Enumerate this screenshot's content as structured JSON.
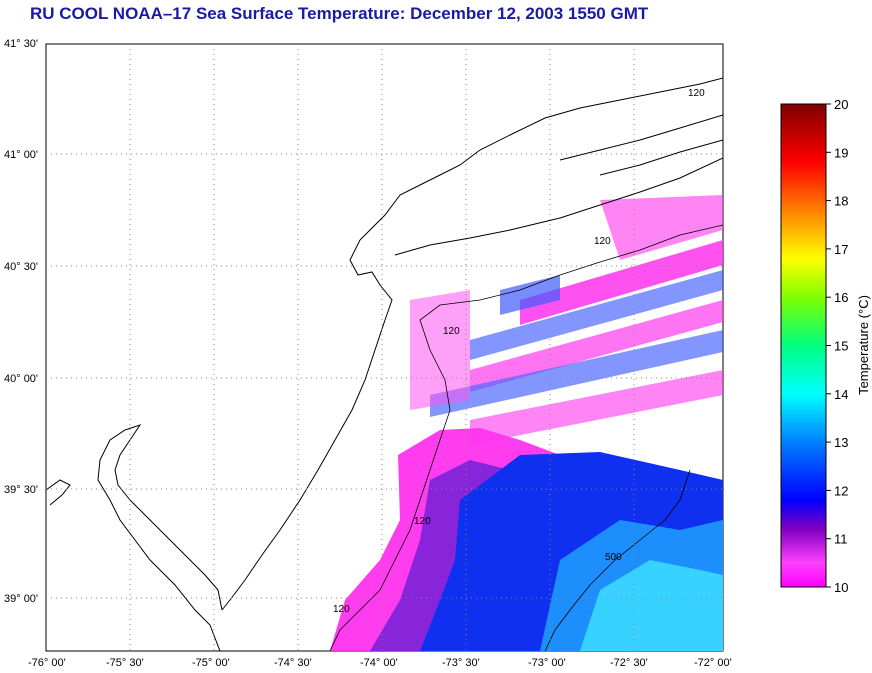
{
  "title": "RU COOL  NOAA–17  Sea Surface Temperature:  December 12, 2003 1550 GMT",
  "lat_ticks": [
    "41° 30'",
    "41° 00'",
    "40° 30'",
    "40° 00'",
    "39° 30'",
    "39° 00'"
  ],
  "lon_ticks": [
    "-76° 00'",
    "-75° 30'",
    "-75° 00'",
    "-74° 30'",
    "-74° 00'",
    "-73° 30'",
    "-73° 00'",
    "-72° 30'",
    "-72° 00'"
  ],
  "colorbar": {
    "label": "Temperature (°C)",
    "ticks": [
      "20",
      "19",
      "18",
      "17",
      "16",
      "15",
      "14",
      "13",
      "12",
      "11",
      "10"
    ],
    "range": [
      10,
      20
    ],
    "colors": [
      "#ff00ff",
      "#8000c0",
      "#0000ff",
      "#0080ff",
      "#00ffff",
      "#00ff80",
      "#80ff00",
      "#ffff00",
      "#ff8000",
      "#ff0000",
      "#800000"
    ]
  },
  "contour_labels": [
    "120",
    "120",
    "120",
    "120",
    "120",
    "500"
  ],
  "map": {
    "extent": {
      "lon": [
        -76.0,
        -72.0
      ],
      "lat": [
        38.75,
        41.5
      ]
    },
    "grid": "dotted",
    "land_color": "#ffffff",
    "coastline_color": "#000000"
  }
}
